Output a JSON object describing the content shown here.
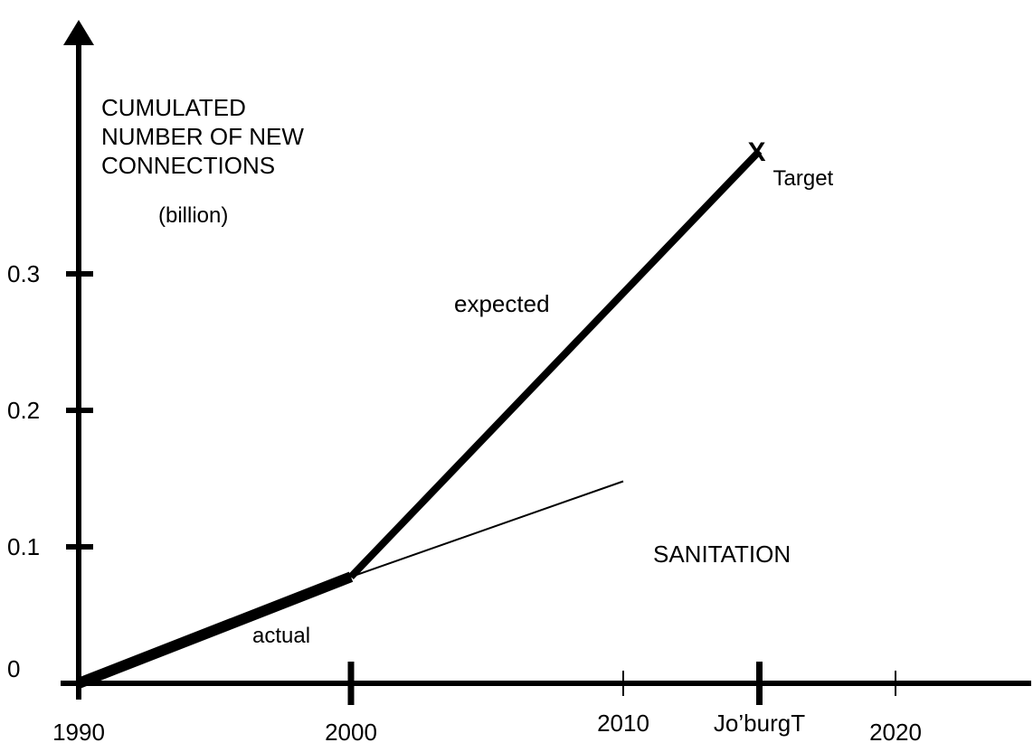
{
  "chart_data": {
    "type": "line",
    "ylabel_lines": [
      "CUMULATED",
      "NUMBER OF NEW",
      "CONNECTIONS"
    ],
    "ylabel_unit": "(billion)",
    "annotation": "SANITATION",
    "x_ticks": [
      {
        "value": 1990,
        "label": "1990",
        "major": true
      },
      {
        "value": 2000,
        "label": "2000",
        "major": true
      },
      {
        "value": 2010,
        "label": "2010",
        "major": false
      },
      {
        "value": 2015,
        "label": "Jo’burgT",
        "major": true
      },
      {
        "value": 2020,
        "label": "2020",
        "major": false
      }
    ],
    "y_ticks": [
      {
        "value": 0,
        "label": "0"
      },
      {
        "value": 0.1,
        "label": "0.1"
      },
      {
        "value": 0.2,
        "label": "0.2"
      },
      {
        "value": 0.3,
        "label": "0.3"
      }
    ],
    "xlim": [
      1990,
      2025
    ],
    "ylim": [
      0,
      0.395
    ],
    "series": [
      {
        "name": "actual",
        "points": [
          [
            1990,
            0
          ],
          [
            2000,
            0.078
          ]
        ]
      },
      {
        "name": "expected",
        "points": [
          [
            2000,
            0.078
          ],
          [
            2015,
            0.39
          ]
        ]
      },
      {
        "name": "",
        "points": [
          [
            2000,
            0.078
          ],
          [
            2010,
            0.148
          ]
        ]
      }
    ],
    "target": {
      "x": 2015,
      "y": 0.39,
      "marker": "X",
      "label": "Target"
    }
  }
}
